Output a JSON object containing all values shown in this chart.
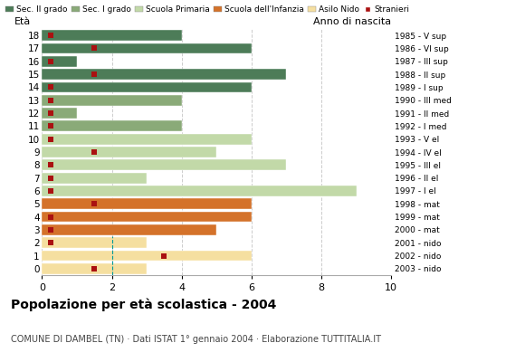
{
  "ages": [
    18,
    17,
    16,
    15,
    14,
    13,
    12,
    11,
    10,
    9,
    8,
    7,
    6,
    5,
    4,
    3,
    2,
    1,
    0
  ],
  "birth_years": [
    "1985 - V sup",
    "1986 - VI sup",
    "1987 - III sup",
    "1988 - II sup",
    "1989 - I sup",
    "1990 - III med",
    "1991 - II med",
    "1992 - I med",
    "1993 - V el",
    "1994 - IV el",
    "1995 - III el",
    "1996 - II el",
    "1997 - I el",
    "1998 - mat",
    "1999 - mat",
    "2000 - mat",
    "2001 - nido",
    "2002 - nido",
    "2003 - nido"
  ],
  "bar_values": [
    4,
    6,
    1,
    7,
    6,
    4,
    1,
    4,
    6,
    5,
    7,
    3,
    9,
    6,
    6,
    5,
    3,
    6,
    3
  ],
  "bar_colors": [
    "#4d7c58",
    "#4d7c58",
    "#4d7c58",
    "#4d7c58",
    "#4d7c58",
    "#8aaa78",
    "#8aaa78",
    "#8aaa78",
    "#c2d9a8",
    "#c2d9a8",
    "#c2d9a8",
    "#c2d9a8",
    "#c2d9a8",
    "#d4722a",
    "#d4722a",
    "#d4722a",
    "#f5dfa0",
    "#f5dfa0",
    "#f5dfa0"
  ],
  "stranieri_y_indices": [
    0,
    1,
    3,
    9,
    13,
    17,
    18
  ],
  "stranieri_x": [
    0.3,
    1.5,
    1.5,
    1.5,
    1.5,
    3.5,
    1.5
  ],
  "dashed_line_x": 2,
  "legend_labels": [
    "Sec. II grado",
    "Sec. I grado",
    "Scuola Primaria",
    "Scuola dell'Infanzia",
    "Asilo Nido",
    "Stranieri"
  ],
  "legend_colors": [
    "#4d7c58",
    "#8aaa78",
    "#c2d9a8",
    "#d4722a",
    "#f5dfa0",
    "#aa1111"
  ],
  "title": "Popolazione per età scolastica - 2004",
  "subtitle": "COMUNE DI DAMBEL (TN) · Dati ISTAT 1° gennaio 2004 · Elaborazione TUTTITALIA.IT",
  "ylabel_left": "Età",
  "ylabel_right": "Anno di nascita",
  "xlim": [
    0,
    10
  ],
  "xticks": [
    0,
    2,
    4,
    6,
    8,
    10
  ],
  "background_color": "#ffffff",
  "grid_color": "#cccccc",
  "bar_height": 0.82,
  "stranieri_color": "#aa1111",
  "stranieri_marker_size": 5
}
